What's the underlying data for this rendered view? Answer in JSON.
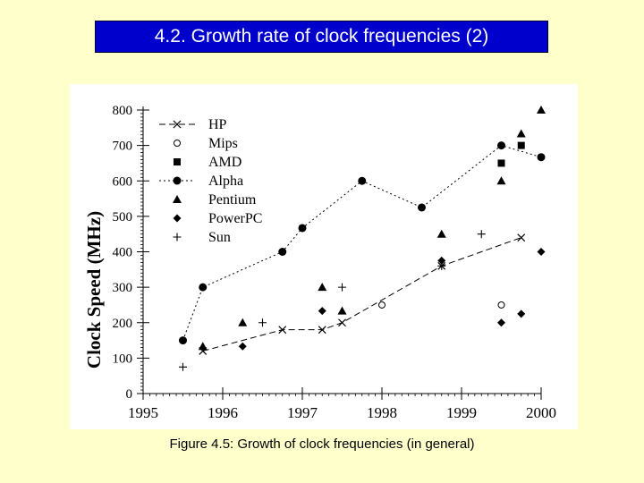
{
  "slide": {
    "title": "4.2. Growth rate of clock frequencies (2)",
    "caption": "Figure 4.5: Growth of clock frequencies (in general)"
  },
  "colors": {
    "background": "#ffffcc",
    "title_bg": "#0000cc",
    "title_text": "#ffffff",
    "plot": "#000000"
  },
  "chart_data": {
    "type": "scatter",
    "title": "",
    "xlabel": "",
    "ylabel": "Clock Speed (MHz)",
    "xlim": [
      1995,
      2000
    ],
    "ylim": [
      0,
      800
    ],
    "x_ticks": [
      "1995",
      "1996",
      "1997",
      "1998",
      "1999",
      "2000"
    ],
    "y_ticks": [
      "0",
      "100",
      "200",
      "300",
      "400",
      "500",
      "600",
      "700",
      "800"
    ],
    "legend_position": "top-left",
    "series": [
      {
        "name": "HP",
        "marker": "x",
        "line": "dashed",
        "x": [
          1995.75,
          1996.75,
          1997.25,
          1997.5,
          1998.75,
          1999.75
        ],
        "y": [
          120,
          180,
          180,
          200,
          360,
          440
        ]
      },
      {
        "name": "Mips",
        "marker": "circle-open",
        "line": "none",
        "x": [
          1998.0,
          1999.5
        ],
        "y": [
          250,
          250
        ]
      },
      {
        "name": "AMD",
        "marker": "square",
        "line": "none",
        "x": [
          1999.5,
          1999.75
        ],
        "y": [
          650,
          700
        ]
      },
      {
        "name": "Alpha",
        "marker": "circle-filled",
        "line": "dotted",
        "x": [
          1995.5,
          1995.75,
          1996.75,
          1997.0,
          1997.75,
          1998.5,
          1999.5,
          2000.0
        ],
        "y": [
          150,
          300,
          400,
          467,
          600,
          525,
          700,
          667
        ]
      },
      {
        "name": "Pentium",
        "marker": "triangle",
        "line": "none",
        "x": [
          1995.75,
          1996.25,
          1997.25,
          1997.5,
          1998.75,
          1999.5,
          1999.75,
          2000.0
        ],
        "y": [
          133,
          200,
          300,
          233,
          450,
          600,
          733,
          800
        ]
      },
      {
        "name": "PowerPC",
        "marker": "diamond",
        "line": "none",
        "x": [
          1996.25,
          1997.25,
          1998.75,
          1999.5,
          1999.75,
          2000.0
        ],
        "y": [
          133,
          233,
          375,
          200,
          225,
          400
        ]
      },
      {
        "name": "Sun",
        "marker": "plus",
        "line": "none",
        "x": [
          1995.5,
          1996.5,
          1997.5,
          1998.75,
          1999.25
        ],
        "y": [
          75,
          200,
          300,
          360,
          450
        ]
      }
    ]
  }
}
